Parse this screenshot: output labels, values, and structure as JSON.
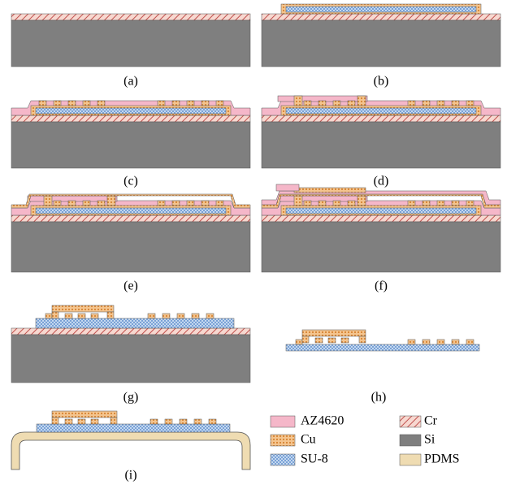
{
  "panels": [
    {
      "label": "(a)"
    },
    {
      "label": "(b)"
    },
    {
      "label": "(c)"
    },
    {
      "label": "(d)"
    },
    {
      "label": "(e)"
    },
    {
      "label": "(f)"
    },
    {
      "label": "(g)"
    },
    {
      "label": "(h)"
    },
    {
      "label": "(i)"
    }
  ],
  "legend": [
    {
      "label": "AZ4620"
    },
    {
      "label": "Cr"
    },
    {
      "label": "Cu"
    },
    {
      "label": "Si"
    },
    {
      "label": "SU-8"
    },
    {
      "label": "PDMS"
    }
  ]
}
